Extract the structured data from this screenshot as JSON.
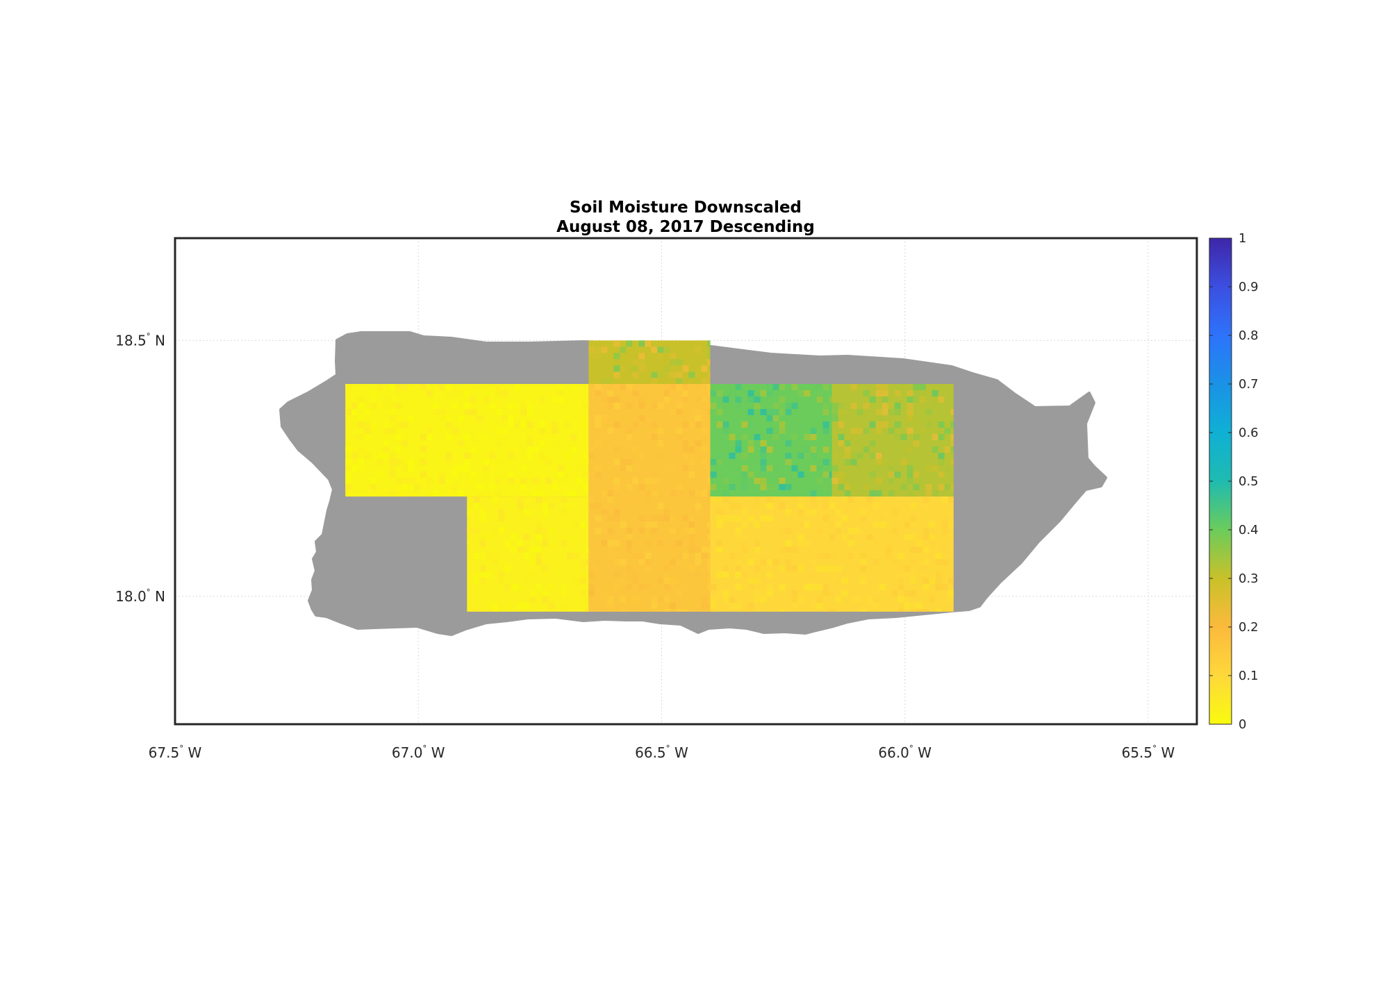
{
  "title": "Soil Moisture Downscaled",
  "subtitle": "August 08, 2017 Descending",
  "map": {
    "lon_range": [
      -67.5,
      -65.4
    ],
    "lat_range": [
      17.75,
      18.7
    ],
    "lon_ticks": [
      {
        "value": -67.5,
        "num": "67.5",
        "deg": "°",
        "hemi": "W"
      },
      {
        "value": -67.0,
        "num": "67.0",
        "deg": "°",
        "hemi": "W"
      },
      {
        "value": -66.5,
        "num": "66.5",
        "deg": "°",
        "hemi": "W"
      },
      {
        "value": -66.0,
        "num": "66.0",
        "deg": "°",
        "hemi": "W"
      },
      {
        "value": -65.5,
        "num": "65.5",
        "deg": "°",
        "hemi": "W"
      }
    ],
    "lat_ticks": [
      {
        "value": 18.5,
        "num": "18.5",
        "deg": "°",
        "hemi": "N"
      },
      {
        "value": 18.0,
        "num": "18.0",
        "deg": "°",
        "hemi": "N"
      }
    ],
    "grid": true,
    "land_color": "#9b9b9b",
    "frame_color": "#262626",
    "grid_color": "#d9d9d9"
  },
  "colorbar": {
    "min": 0,
    "max": 1,
    "ticks": [
      "0",
      "0.1",
      "0.2",
      "0.3",
      "0.4",
      "0.5",
      "0.6",
      "0.7",
      "0.8",
      "0.9",
      "1"
    ],
    "colormap": "parula"
  },
  "chart_data": {
    "type": "heatmap",
    "variable": "soil moisture",
    "swaths": [
      {
        "lon": [
          -67.15,
          -66.65
        ],
        "lat": [
          18.195,
          18.415
        ],
        "value": 0.02
      },
      {
        "lon": [
          -66.9,
          -66.65
        ],
        "lat": [
          17.97,
          18.195
        ],
        "value": 0.03
      },
      {
        "lon": [
          -66.65,
          -66.4
        ],
        "lat": [
          17.97,
          18.415
        ],
        "value": 0.16
      },
      {
        "lon": [
          -66.65,
          -66.4
        ],
        "lat": [
          18.415,
          18.5
        ],
        "value": 0.3
      },
      {
        "lon": [
          -66.4,
          -66.15
        ],
        "lat": [
          18.195,
          18.415
        ],
        "value": 0.4
      },
      {
        "lon": [
          -66.15,
          -65.9
        ],
        "lat": [
          18.195,
          18.415
        ],
        "value": 0.32
      },
      {
        "lon": [
          -66.4,
          -65.9
        ],
        "lat": [
          17.97,
          18.195
        ],
        "value": 0.1
      }
    ]
  }
}
